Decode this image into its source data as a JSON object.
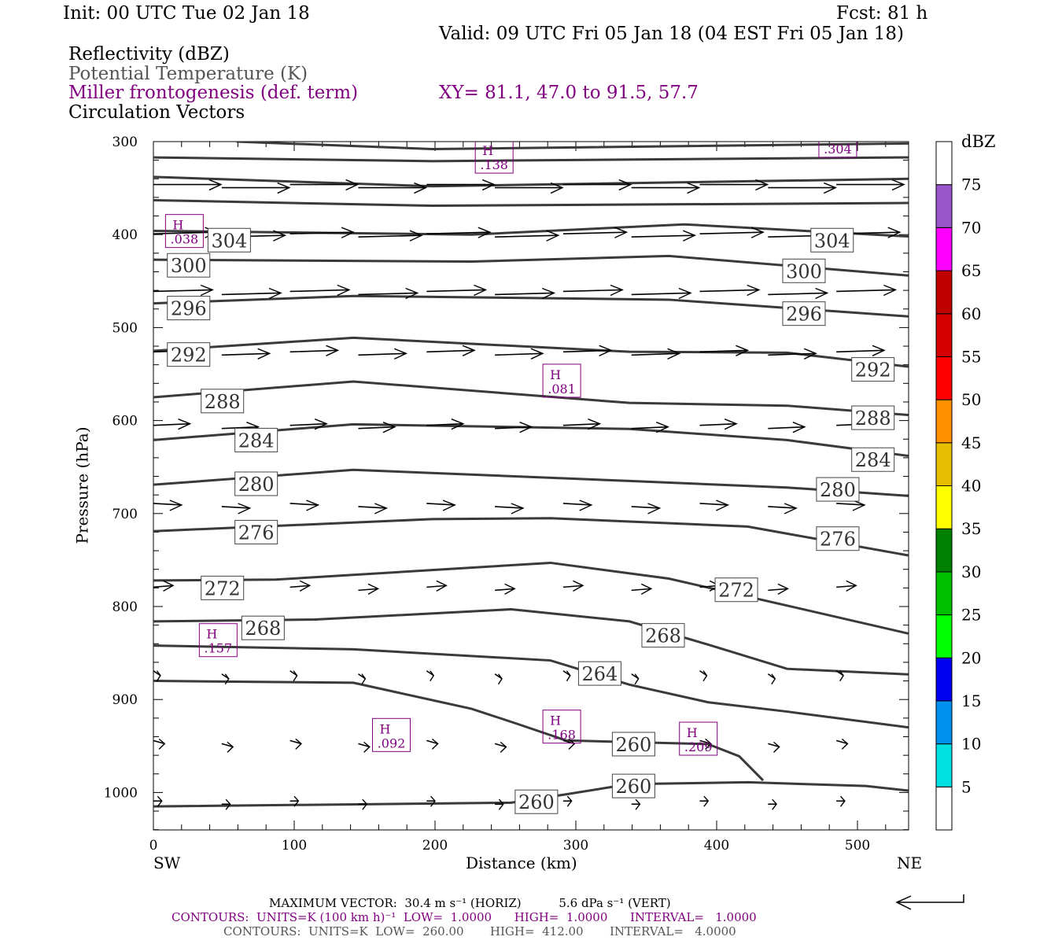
{
  "header": {
    "init": "Init: 00 UTC Tue 02 Jan 18",
    "fcst": "Fcst:   81 h",
    "valid": "Valid: 09 UTC Fri 05 Jan 18 (04 EST Fri 05 Jan 18)",
    "field1": "Reflectivity (dBZ)",
    "field2": "Potential Temperature (K)",
    "field3": "Miller frontogenesis (def. term)",
    "field4": "Circulation Vectors",
    "xy": "XY=  81.1, 47.0 to  91.5, 57.7"
  },
  "footer": {
    "maxvec": "MAXIMUM VECTOR:  30.4 m s⁻¹ (HORIZ)          5.6 dPa s⁻¹ (VERT)",
    "contours1": "CONTOURS:  UNITS=K (100 km h)⁻¹  LOW=  1.0000      HIGH=  1.0000      INTERVAL=   1.0000",
    "contours2": "CONTOURS:  UNITS=K  LOW=  260.00       HIGH=  412.00       INTERVAL=   4.0000"
  },
  "chart_data": {
    "type": "cross-section",
    "xlabel": "Distance (km)",
    "ylabel": "Pressure (hPa)",
    "xlim": [
      0,
      536
    ],
    "ylim": [
      1040,
      300
    ],
    "xticks": [
      0,
      100,
      200,
      300,
      400,
      500
    ],
    "yticks": [
      300,
      400,
      500,
      600,
      700,
      800,
      900,
      1000
    ],
    "x_left_label": "SW",
    "x_right_label": "NE",
    "colorbar": {
      "unit": "dBZ",
      "levels": [
        "5",
        "10",
        "15",
        "20",
        "25",
        "30",
        "35",
        "40",
        "45",
        "50",
        "55",
        "60",
        "65",
        "70",
        "75"
      ],
      "colors": [
        "#ffffff",
        "#00e0e0",
        "#0090f0",
        "#0000f0",
        "#00ff00",
        "#00c000",
        "#008000",
        "#ffff00",
        "#e6c000",
        "#ff9000",
        "#ff0000",
        "#d60000",
        "#c00000",
        "#ff00ff",
        "#9955c9",
        "#ffffff"
      ]
    },
    "theta_contours": [
      {
        "pts": [
          [
            59,
            300
          ],
          [
            198,
            308
          ],
          [
            536,
            302
          ]
        ]
      },
      {
        "pts": [
          [
            0,
            317
          ],
          [
            198,
            321
          ],
          [
            536,
            317
          ]
        ]
      },
      {
        "pts": [
          [
            0,
            338
          ],
          [
            198,
            348
          ],
          [
            536,
            340
          ]
        ]
      },
      {
        "pts": [
          [
            0,
            363
          ],
          [
            198,
            369
          ],
          [
            536,
            366
          ]
        ]
      },
      {
        "pts": [
          [
            0,
            396
          ],
          [
            226,
            400
          ],
          [
            377,
            389
          ],
          [
            536,
            402
          ]
        ]
      },
      {
        "pts": [
          [
            0,
            427
          ],
          [
            226,
            429
          ],
          [
            366,
            423
          ],
          [
            536,
            444
          ]
        ]
      },
      {
        "pts": [
          [
            0,
            474
          ],
          [
            142,
            466
          ],
          [
            366,
            470
          ],
          [
            536,
            488
          ]
        ]
      },
      {
        "pts": [
          [
            0,
            525
          ],
          [
            142,
            511
          ],
          [
            338,
            526
          ],
          [
            450,
            527
          ],
          [
            536,
            542
          ]
        ]
      },
      {
        "pts": [
          [
            0,
            575
          ],
          [
            142,
            558
          ],
          [
            338,
            581
          ],
          [
            450,
            584
          ],
          [
            536,
            594
          ]
        ]
      },
      {
        "pts": [
          [
            0,
            621
          ],
          [
            142,
            604
          ],
          [
            338,
            609
          ],
          [
            450,
            621
          ],
          [
            536,
            638
          ]
        ]
      },
      {
        "pts": [
          [
            0,
            669
          ],
          [
            142,
            653
          ],
          [
            338,
            665
          ],
          [
            450,
            672
          ],
          [
            536,
            681
          ]
        ]
      },
      {
        "pts": [
          [
            0,
            719
          ],
          [
            198,
            706
          ],
          [
            282,
            705
          ],
          [
            422,
            714
          ],
          [
            536,
            745
          ]
        ]
      },
      {
        "pts": [
          [
            0,
            772
          ],
          [
            87,
            771
          ],
          [
            282,
            753
          ],
          [
            366,
            770
          ],
          [
            450,
            799
          ],
          [
            536,
            829
          ]
        ]
      },
      {
        "pts": [
          [
            0,
            816
          ],
          [
            115,
            814
          ],
          [
            254,
            803
          ],
          [
            338,
            816
          ],
          [
            394,
            841
          ],
          [
            450,
            867
          ],
          [
            536,
            873
          ]
        ]
      },
      {
        "pts": [
          [
            0,
            842
          ],
          [
            142,
            846
          ],
          [
            282,
            858
          ],
          [
            338,
            884
          ],
          [
            394,
            903
          ],
          [
            450,
            913
          ],
          [
            536,
            930
          ]
        ]
      },
      {
        "pts": [
          [
            0,
            880
          ],
          [
            142,
            882
          ],
          [
            226,
            910
          ],
          [
            260,
            927
          ],
          [
            293,
            944
          ],
          [
            394,
            948
          ],
          [
            416,
            961
          ],
          [
            433,
            987
          ]
        ]
      },
      {
        "pts": [
          [
            0,
            1015
          ],
          [
            254,
            1011
          ],
          [
            293,
            1002
          ],
          [
            338,
            991
          ],
          [
            422,
            989
          ],
          [
            506,
            993
          ],
          [
            536,
            998
          ]
        ]
      }
    ],
    "theta_labels": [
      {
        "km": 25,
        "p": 406,
        "t": "304"
      },
      {
        "km": 25,
        "p": 433,
        "t": "300"
      },
      {
        "km": 25,
        "p": 479,
        "t": "296"
      },
      {
        "km": 25,
        "p": 529,
        "t": "292"
      },
      {
        "km": 49,
        "p": 579,
        "t": "288"
      },
      {
        "km": 73,
        "p": 621,
        "t": "284"
      },
      {
        "km": 73,
        "p": 668,
        "t": "280"
      },
      {
        "km": 73,
        "p": 720,
        "t": "276"
      },
      {
        "km": 49,
        "p": 780,
        "t": "272"
      },
      {
        "km": 25,
        "p": 823,
        "t": "268"
      },
      {
        "km": 482,
        "p": 406,
        "t": "304"
      },
      {
        "km": 462,
        "p": 439,
        "t": "300"
      },
      {
        "km": 462,
        "p": 485,
        "t": "296"
      },
      {
        "km": 511,
        "p": 545,
        "t": "292"
      },
      {
        "km": 511,
        "p": 597,
        "t": "288"
      },
      {
        "km": 511,
        "p": 642,
        "t": "284"
      },
      {
        "km": 486,
        "p": 674,
        "t": "280"
      },
      {
        "km": 486,
        "p": 727,
        "t": "276"
      },
      {
        "km": 414,
        "p": 782,
        "t": "272"
      },
      {
        "km": 362,
        "p": 831,
        "t": "268"
      },
      {
        "km": 317,
        "p": 872,
        "t": "264"
      },
      {
        "km": 341,
        "p": 948,
        "t": "260"
      },
      {
        "km": 272,
        "p": 1010,
        "t": "260"
      },
      {
        "km": 341,
        "p": 993,
        "t": "260"
      }
    ],
    "frontogenesis_highs": [
      {
        "km": 242,
        "p": 317,
        "v": ".138"
      },
      {
        "km": 22,
        "p": 397,
        "v": ".038"
      },
      {
        "km": 290,
        "p": 558,
        "v": ".081"
      },
      {
        "km": 46,
        "p": 837,
        "v": ".157"
      },
      {
        "km": 169,
        "p": 939,
        "v": ".092"
      },
      {
        "km": 290,
        "p": 930,
        "v": ".168"
      },
      {
        "km": 387,
        "p": 943,
        "v": ".209"
      },
      {
        "km": 486,
        "p": 300,
        "v": ".304"
      }
    ],
    "vectors": [
      {
        "p": 347,
        "len": 48,
        "tilt": 0
      },
      {
        "p": 400,
        "len": 45,
        "tilt": -2
      },
      {
        "p": 462,
        "len": 42,
        "tilt": -2
      },
      {
        "p": 527,
        "len": 34,
        "tilt": -2
      },
      {
        "p": 606,
        "len": 26,
        "tilt": -2
      },
      {
        "p": 690,
        "len": 20,
        "tilt": 2
      },
      {
        "p": 780,
        "len": 14,
        "tilt": -2
      },
      {
        "p": 870,
        "len": 5,
        "tilt": 6
      },
      {
        "p": 945,
        "len": 8,
        "tilt": 4
      },
      {
        "p": 1010,
        "len": 6,
        "tilt": 0
      }
    ],
    "h_label": "H"
  }
}
